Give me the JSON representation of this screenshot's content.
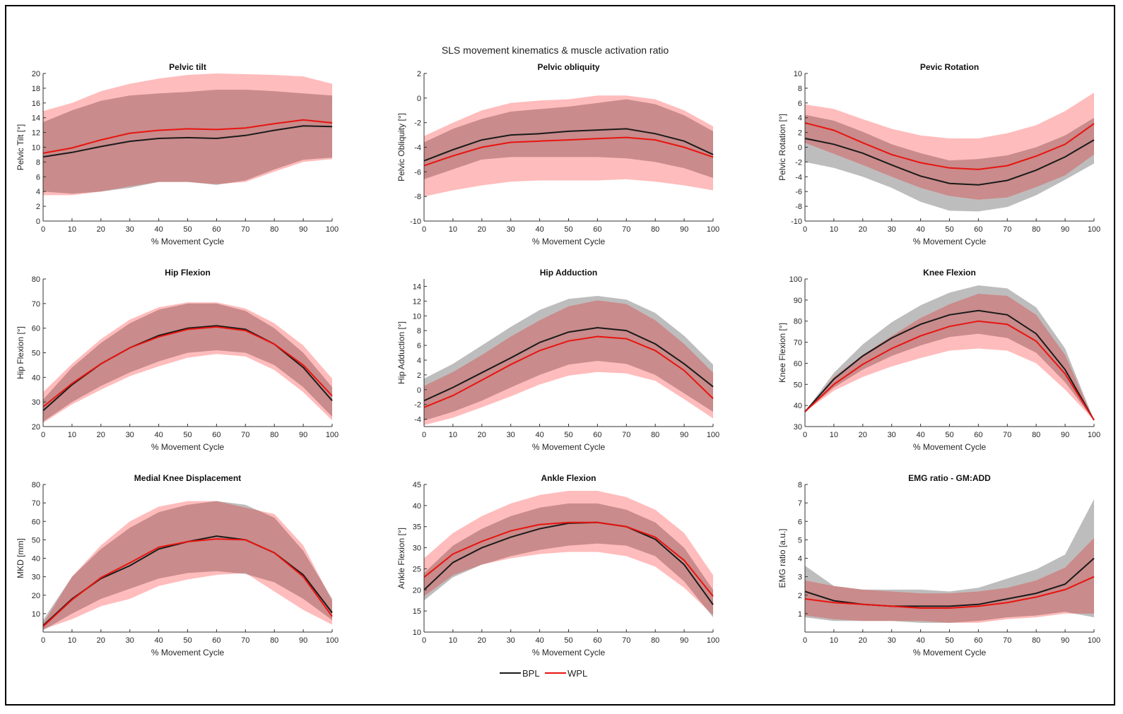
{
  "figure_title": "SLS movement kinematics & muscle activation ratio",
  "legend": [
    {
      "label": "BPL",
      "color": "#1a1a1a"
    },
    {
      "label": "WPL",
      "color": "#e8140f"
    }
  ],
  "colors": {
    "bpl_line": "#1a1a1a",
    "wpl_line": "#e8140f",
    "bpl_band": "#bdbdbd",
    "wpl_band": "#ffbcbc",
    "overlap_band": "#c98b8b"
  },
  "chart_data": [
    {
      "type": "line",
      "title": "Pelvic tilt",
      "xlabel": "% Movement Cycle",
      "ylabel": "Pelvic Tilt [°]",
      "xlim": [
        0,
        100
      ],
      "ylim": [
        0,
        20
      ],
      "yticks": [
        0,
        2,
        4,
        6,
        8,
        10,
        12,
        14,
        16,
        18,
        20
      ],
      "x": [
        0,
        10,
        20,
        30,
        40,
        50,
        60,
        70,
        80,
        90,
        100
      ],
      "series": [
        {
          "name": "BPL",
          "values": [
            8.7,
            9.3,
            10.1,
            10.8,
            11.2,
            11.3,
            11.2,
            11.6,
            12.3,
            12.9,
            12.8
          ],
          "upper": [
            13.4,
            15.0,
            16.3,
            17.0,
            17.3,
            17.5,
            17.8,
            17.8,
            17.6,
            17.3,
            17.0
          ],
          "lower": [
            4.0,
            3.7,
            4.0,
            4.5,
            5.3,
            5.3,
            4.9,
            5.5,
            7.0,
            8.3,
            8.6
          ]
        },
        {
          "name": "WPL",
          "values": [
            9.2,
            9.9,
            11.0,
            11.9,
            12.3,
            12.5,
            12.4,
            12.6,
            13.2,
            13.7,
            13.3
          ],
          "upper": [
            14.9,
            16.0,
            17.6,
            18.6,
            19.3,
            19.8,
            20.0,
            19.9,
            19.8,
            19.6,
            18.6
          ],
          "lower": [
            3.5,
            3.5,
            4.0,
            4.7,
            5.3,
            5.3,
            5.0,
            5.3,
            6.7,
            8.0,
            8.4
          ]
        }
      ]
    },
    {
      "type": "line",
      "title": "Pelvic obliquity",
      "xlabel": "% Movement Cycle",
      "ylabel": "Pelvic Obliquity [°]",
      "xlim": [
        0,
        100
      ],
      "ylim": [
        -10,
        2
      ],
      "yticks": [
        -10,
        -8,
        -6,
        -4,
        -2,
        0,
        2
      ],
      "x": [
        0,
        10,
        20,
        30,
        40,
        50,
        60,
        70,
        80,
        90,
        100
      ],
      "series": [
        {
          "name": "BPL",
          "values": [
            -5.1,
            -4.2,
            -3.4,
            -3.0,
            -2.9,
            -2.7,
            -2.6,
            -2.5,
            -2.9,
            -3.5,
            -4.6
          ],
          "upper": [
            -3.6,
            -2.5,
            -1.7,
            -1.1,
            -0.9,
            -0.7,
            -0.4,
            -0.1,
            -0.5,
            -1.4,
            -2.7
          ],
          "lower": [
            -6.6,
            -5.8,
            -5.0,
            -4.8,
            -4.8,
            -4.8,
            -4.8,
            -4.9,
            -5.2,
            -5.7,
            -6.5
          ]
        },
        {
          "name": "WPL",
          "values": [
            -5.5,
            -4.7,
            -4.0,
            -3.6,
            -3.5,
            -3.4,
            -3.3,
            -3.2,
            -3.4,
            -4.0,
            -4.8
          ],
          "upper": [
            -3.1,
            -2.0,
            -1.0,
            -0.4,
            -0.2,
            -0.1,
            0.2,
            0.2,
            -0.1,
            -1.0,
            -2.3
          ],
          "lower": [
            -8.0,
            -7.5,
            -7.1,
            -6.8,
            -6.7,
            -6.7,
            -6.7,
            -6.6,
            -6.8,
            -7.1,
            -7.5
          ]
        }
      ]
    },
    {
      "type": "line",
      "title": "Pevic Rotation",
      "xlabel": "% Movement Cycle",
      "ylabel": "Pelvic Rotation [°]",
      "xlim": [
        0,
        100
      ],
      "ylim": [
        -10,
        10
      ],
      "yticks": [
        -10,
        -8,
        -6,
        -4,
        -2,
        0,
        2,
        4,
        6,
        8,
        10
      ],
      "x": [
        0,
        10,
        20,
        30,
        40,
        50,
        60,
        70,
        80,
        90,
        100
      ],
      "series": [
        {
          "name": "BPL",
          "values": [
            1.2,
            0.4,
            -0.8,
            -2.4,
            -3.9,
            -4.9,
            -5.1,
            -4.5,
            -3.1,
            -1.3,
            1.0
          ],
          "upper": [
            4.4,
            3.6,
            2.1,
            0.4,
            -0.8,
            -1.8,
            -1.6,
            -1.1,
            0.0,
            1.6,
            4.0
          ],
          "lower": [
            -2.0,
            -2.8,
            -4.0,
            -5.5,
            -7.4,
            -8.6,
            -8.7,
            -8.1,
            -6.5,
            -4.4,
            -2.2
          ]
        },
        {
          "name": "WPL",
          "values": [
            3.3,
            2.3,
            0.6,
            -1.0,
            -2.1,
            -2.8,
            -3.0,
            -2.5,
            -1.2,
            0.4,
            3.2
          ],
          "upper": [
            5.8,
            5.2,
            3.8,
            2.5,
            1.6,
            1.2,
            1.2,
            1.9,
            3.0,
            4.9,
            7.4
          ],
          "lower": [
            0.6,
            -0.9,
            -2.4,
            -4.0,
            -5.5,
            -6.6,
            -7.1,
            -6.8,
            -5.4,
            -3.8,
            -1.0
          ]
        }
      ]
    },
    {
      "type": "line",
      "title": "Hip Flexion",
      "xlabel": "% Movement Cycle",
      "ylabel": "Hip Flexion [°]",
      "xlim": [
        0,
        100
      ],
      "ylim": [
        20,
        80
      ],
      "yticks": [
        20,
        30,
        40,
        50,
        60,
        70,
        80
      ],
      "x": [
        0,
        10,
        20,
        30,
        40,
        50,
        60,
        70,
        80,
        90,
        100
      ],
      "series": [
        {
          "name": "BPL",
          "values": [
            26.5,
            37.0,
            45.5,
            52.0,
            57.0,
            60.0,
            61.0,
            59.5,
            53.5,
            44.0,
            30.5
          ],
          "upper": [
            31.0,
            44.0,
            54.0,
            62.0,
            67.5,
            70.0,
            70.0,
            67.0,
            60.0,
            50.0,
            36.0
          ],
          "lower": [
            22.0,
            30.0,
            36.5,
            42.0,
            46.5,
            50.0,
            51.0,
            50.0,
            45.0,
            36.0,
            24.0
          ]
        },
        {
          "name": "WPL",
          "values": [
            28.0,
            37.5,
            45.5,
            52.0,
            56.5,
            59.5,
            60.5,
            59.0,
            53.5,
            45.0,
            32.5
          ],
          "upper": [
            34.0,
            45.5,
            55.5,
            63.5,
            68.5,
            70.5,
            70.5,
            68.0,
            62.0,
            53.0,
            39.5
          ],
          "lower": [
            21.5,
            29.0,
            35.0,
            40.5,
            44.5,
            48.0,
            49.5,
            48.5,
            43.0,
            34.0,
            22.5
          ]
        }
      ]
    },
    {
      "type": "line",
      "title": "Hip Adduction",
      "xlabel": "% Movement Cycle",
      "ylabel": "Hip Adduction [°]",
      "xlim": [
        0,
        100
      ],
      "ylim": [
        -5,
        15
      ],
      "yticks": [
        -4,
        -2,
        0,
        2,
        4,
        6,
        8,
        10,
        12,
        14
      ],
      "x": [
        0,
        10,
        20,
        30,
        40,
        50,
        60,
        70,
        80,
        90,
        100
      ],
      "series": [
        {
          "name": "BPL",
          "values": [
            -1.5,
            0.3,
            2.3,
            4.3,
            6.4,
            7.8,
            8.4,
            8.0,
            6.2,
            3.5,
            0.4
          ],
          "upper": [
            1.5,
            3.5,
            6.0,
            8.5,
            10.8,
            12.3,
            12.7,
            12.2,
            10.4,
            7.3,
            3.4
          ],
          "lower": [
            -4.2,
            -3.0,
            -1.5,
            0.3,
            2.0,
            3.4,
            3.9,
            3.5,
            2.0,
            -0.5,
            -3.0
          ]
        },
        {
          "name": "WPL",
          "values": [
            -2.4,
            -0.8,
            1.3,
            3.4,
            5.3,
            6.6,
            7.2,
            6.9,
            5.3,
            2.6,
            -1.2
          ],
          "upper": [
            0.5,
            2.4,
            4.7,
            7.2,
            9.4,
            11.3,
            12.1,
            11.6,
            9.4,
            6.2,
            2.3
          ],
          "lower": [
            -4.8,
            -3.8,
            -2.4,
            -0.9,
            0.7,
            1.9,
            2.4,
            2.2,
            1.2,
            -1.3,
            -3.9
          ]
        }
      ]
    },
    {
      "type": "line",
      "title": "Knee Flexion",
      "xlabel": "% Movement Cycle",
      "ylabel": "Knee Flexion [°]",
      "xlim": [
        0,
        100
      ],
      "ylim": [
        30,
        100
      ],
      "yticks": [
        30,
        40,
        50,
        60,
        70,
        80,
        90,
        100
      ],
      "x": [
        0,
        10,
        20,
        30,
        40,
        50,
        60,
        70,
        80,
        90,
        100
      ],
      "series": [
        {
          "name": "BPL",
          "values": [
            37.0,
            52.5,
            63.5,
            72.0,
            78.5,
            83.0,
            85.0,
            83.0,
            74.0,
            57.0,
            33.0
          ],
          "upper": [
            37.0,
            55.5,
            69.0,
            79.5,
            87.5,
            93.5,
            97.0,
            95.5,
            86.5,
            67.0,
            33.0
          ],
          "lower": [
            37.0,
            48.5,
            57.0,
            63.5,
            68.5,
            72.5,
            74.0,
            72.0,
            65.0,
            51.0,
            33.0
          ]
        },
        {
          "name": "WPL",
          "values": [
            37.0,
            50.0,
            59.5,
            67.0,
            73.0,
            77.5,
            80.0,
            78.5,
            70.5,
            55.0,
            33.0
          ],
          "upper": [
            37.0,
            53.5,
            64.0,
            73.0,
            81.5,
            88.0,
            93.0,
            92.0,
            83.0,
            64.0,
            33.0
          ],
          "lower": [
            37.0,
            47.0,
            53.5,
            58.5,
            62.5,
            66.0,
            67.0,
            66.0,
            60.0,
            47.5,
            33.0
          ]
        }
      ]
    },
    {
      "type": "line",
      "title": "Medial Knee Displacement",
      "xlabel": "% Movement Cycle",
      "ylabel": "MKD [mm]",
      "xlim": [
        0,
        100
      ],
      "ylim": [
        0,
        80
      ],
      "yticks": [
        10,
        20,
        30,
        40,
        50,
        60,
        70,
        80
      ],
      "x": [
        0,
        10,
        20,
        30,
        40,
        50,
        60,
        70,
        80,
        90,
        100
      ],
      "series": [
        {
          "name": "BPL",
          "values": [
            3.5,
            18.0,
            29.0,
            36.0,
            45.0,
            49.0,
            52.0,
            50.0,
            43.0,
            31.0,
            10.5
          ],
          "upper": [
            6.5,
            30.0,
            45.0,
            56.5,
            65.0,
            69.0,
            71.0,
            69.0,
            62.0,
            44.0,
            18.0
          ],
          "lower": [
            1.0,
            10.0,
            18.0,
            23.5,
            29.0,
            32.0,
            33.0,
            31.5,
            27.0,
            18.0,
            6.5
          ]
        },
        {
          "name": "WPL",
          "values": [
            3.0,
            17.5,
            29.5,
            37.5,
            46.0,
            49.0,
            50.5,
            50.0,
            43.0,
            30.0,
            8.5
          ],
          "upper": [
            4.5,
            30.0,
            47.0,
            60.0,
            68.0,
            71.0,
            71.0,
            67.5,
            64.0,
            47.0,
            17.0
          ],
          "lower": [
            1.5,
            7.0,
            14.0,
            18.0,
            25.0,
            28.5,
            31.0,
            32.0,
            22.0,
            12.0,
            4.0
          ]
        }
      ]
    },
    {
      "type": "line",
      "title": "Ankle Flexion",
      "xlabel": "% Movement Cycle",
      "ylabel": "Ankle Flexion [°]",
      "xlim": [
        0,
        100
      ],
      "ylim": [
        10,
        45
      ],
      "yticks": [
        10,
        15,
        20,
        25,
        30,
        35,
        40,
        45
      ],
      "x": [
        0,
        10,
        20,
        30,
        40,
        50,
        60,
        70,
        80,
        90,
        100
      ],
      "series": [
        {
          "name": "BPL",
          "values": [
            20.0,
            26.5,
            30.0,
            32.5,
            34.5,
            35.8,
            36.0,
            35.0,
            32.0,
            26.0,
            16.5
          ],
          "upper": [
            24.0,
            30.5,
            34.5,
            37.5,
            39.5,
            40.5,
            40.5,
            39.0,
            36.0,
            30.0,
            20.0
          ],
          "lower": [
            17.5,
            23.0,
            26.0,
            28.0,
            29.5,
            30.5,
            31.0,
            30.5,
            28.0,
            22.0,
            13.5
          ]
        },
        {
          "name": "WPL",
          "values": [
            23.0,
            28.5,
            31.5,
            34.0,
            35.5,
            36.0,
            36.0,
            35.0,
            32.5,
            27.0,
            18.5
          ],
          "upper": [
            27.5,
            33.5,
            37.5,
            40.5,
            42.5,
            43.5,
            43.5,
            42.0,
            39.0,
            33.5,
            23.5
          ],
          "lower": [
            18.5,
            23.5,
            26.0,
            27.5,
            28.5,
            29.0,
            29.0,
            28.0,
            25.5,
            20.5,
            14.0
          ]
        }
      ]
    },
    {
      "type": "line",
      "title": "EMG ratio - GM:ADD",
      "xlabel": "% Movement Cycle",
      "ylabel": "EMG ratio [a.u.]",
      "xlim": [
        0,
        100
      ],
      "ylim": [
        0,
        8
      ],
      "yticks": [
        1,
        2,
        3,
        4,
        5,
        6,
        7,
        8
      ],
      "x": [
        0,
        10,
        20,
        30,
        40,
        50,
        60,
        70,
        80,
        90,
        100
      ],
      "series": [
        {
          "name": "BPL",
          "values": [
            2.2,
            1.7,
            1.5,
            1.4,
            1.4,
            1.4,
            1.5,
            1.8,
            2.1,
            2.6,
            4.0
          ],
          "upper": [
            3.6,
            2.5,
            2.3,
            2.3,
            2.3,
            2.2,
            2.4,
            2.9,
            3.4,
            4.2,
            7.2
          ],
          "lower": [
            0.8,
            0.6,
            0.6,
            0.6,
            0.5,
            0.5,
            0.6,
            0.8,
            0.9,
            1.1,
            0.8
          ]
        },
        {
          "name": "WPL",
          "values": [
            1.8,
            1.6,
            1.5,
            1.4,
            1.3,
            1.3,
            1.4,
            1.6,
            1.9,
            2.3,
            3.0
          ],
          "upper": [
            2.8,
            2.5,
            2.3,
            2.2,
            2.1,
            2.1,
            2.2,
            2.4,
            2.8,
            3.5,
            5.1
          ],
          "lower": [
            0.9,
            0.7,
            0.6,
            0.6,
            0.6,
            0.5,
            0.5,
            0.7,
            0.8,
            1.0,
            1.0
          ]
        }
      ]
    }
  ]
}
